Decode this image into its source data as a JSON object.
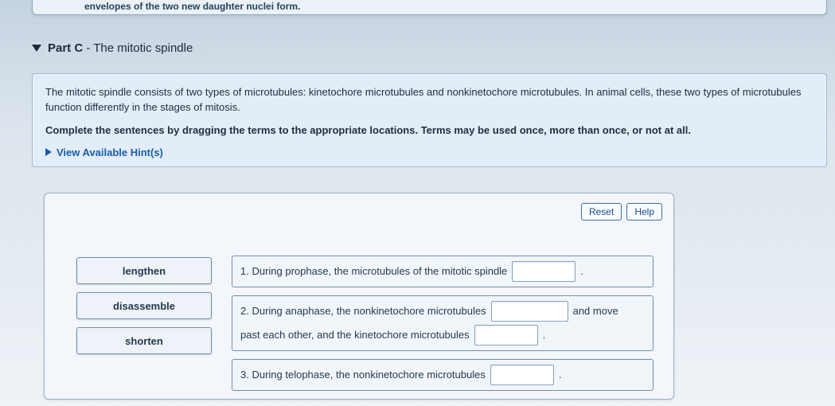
{
  "top_fragment": "envelopes of the two new daughter nuclei form.",
  "part": {
    "label": "Part C",
    "separator": " - ",
    "title": "The mitotic spindle"
  },
  "instructions": {
    "p1": "The mitotic spindle consists of two types of microtubules: kinetochore microtubules and nonkinetochore microtubules. In animal cells, these two types of microtubules function differently in the stages of mitosis.",
    "p2": "Complete the sentences by dragging the terms to the appropriate locations. Terms may be used once, more than once, or not at all."
  },
  "hints": {
    "label": "View Available Hint(s)"
  },
  "buttons": {
    "reset": "Reset",
    "help": "Help"
  },
  "terms": [
    "lengthen",
    "disassemble",
    "shorten"
  ],
  "sentences": {
    "s1": {
      "text": "1. During prophase, the microtubules of the mitotic spindle"
    },
    "s2": {
      "a": "2. During anaphase, the nonkinetochore microtubules",
      "b": "and move",
      "c": "past each other, and the kinetochore microtubules"
    },
    "s3": {
      "text": "3. During telophase, the nonkinetochore microtubules"
    }
  },
  "colors": {
    "page_bg_top": "#c5d3e0",
    "page_bg_bottom": "#eef3f7",
    "panel_bg": "#e2edf8",
    "panel_border": "#9db7d0",
    "work_bg": "#f3f6fa",
    "work_border": "#9bb0c7",
    "accent_blue": "#1a5ca8",
    "text": "#1a2a3a",
    "term_border": "#6f8eb0"
  }
}
